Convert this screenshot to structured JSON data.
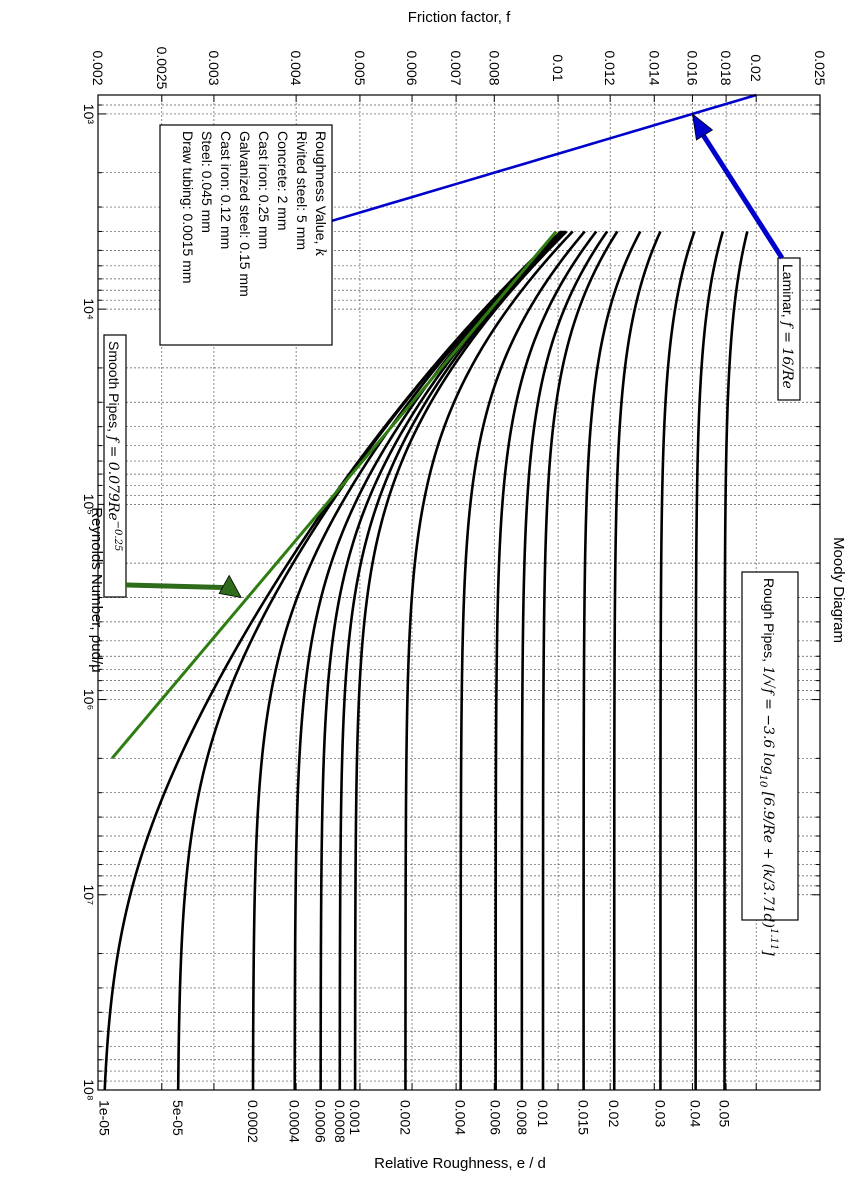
{
  "chart_data": {
    "type": "line",
    "title": "Moody Diagram",
    "xlabel": "Reynolds Number, ρud/μ",
    "ylabel": "Friction factor, f",
    "right_axis_label": "Relative Roughness, e / d",
    "x_scale": "log",
    "y_scale": "log",
    "xlim": [
      800,
      100000000
    ],
    "ylim": [
      0.002,
      0.025
    ],
    "grid": true,
    "x_ticks": [
      {
        "value": 1000,
        "label": "10³"
      },
      {
        "value": 10000,
        "label": "10⁴"
      },
      {
        "value": 100000,
        "label": "10⁵"
      },
      {
        "value": 1000000,
        "label": "10⁶"
      },
      {
        "value": 10000000,
        "label": "10⁷"
      },
      {
        "value": 100000000,
        "label": "10⁸"
      }
    ],
    "y_ticks": [
      {
        "value": 0.002,
        "label": "0.002"
      },
      {
        "value": 0.0025,
        "label": "0.0025"
      },
      {
        "value": 0.003,
        "label": "0.003"
      },
      {
        "value": 0.004,
        "label": "0.004"
      },
      {
        "value": 0.005,
        "label": "0.005"
      },
      {
        "value": 0.006,
        "label": "0.006"
      },
      {
        "value": 0.007,
        "label": "0.007"
      },
      {
        "value": 0.008,
        "label": "0.008"
      },
      {
        "value": 0.01,
        "label": "0.01"
      },
      {
        "value": 0.012,
        "label": "0.012"
      },
      {
        "value": 0.014,
        "label": "0.014"
      },
      {
        "value": 0.016,
        "label": "0.016"
      },
      {
        "value": 0.018,
        "label": "0.018"
      },
      {
        "value": 0.02,
        "label": "0.02"
      },
      {
        "value": 0.025,
        "label": "0.025"
      }
    ],
    "roughness_curves": {
      "color": "#000000",
      "re_start": 4000,
      "re_end": 100000000,
      "values": [
        0.05,
        0.04,
        0.03,
        0.02,
        0.015,
        0.01,
        0.008,
        0.006,
        0.004,
        0.002,
        0.001,
        0.0008,
        0.0006,
        0.0004,
        0.0002,
        5e-05,
        1e-05
      ],
      "labels": [
        "0.05",
        "0.04",
        "0.03",
        "0.02",
        "0.015",
        "0.01",
        "0.008",
        "0.006",
        "0.004",
        "0.002",
        "0.001",
        "0.0008",
        "0.0006",
        "0.0004",
        "0.0002",
        "5e-05",
        "1e-05"
      ]
    },
    "laminar": {
      "color": "#0000cc",
      "coefficient": 16,
      "re_range": [
        800,
        4000
      ]
    },
    "smooth": {
      "color": "#2e7d12",
      "coefficient": 0.079,
      "exponent": -0.25,
      "re_range": [
        4000,
        2000000
      ]
    },
    "annotations": {
      "laminar": {
        "text": "Laminar, ",
        "formula": "f = 16/Re",
        "arrow_color": "#0000cc",
        "point": [
          1000,
          0.016
        ]
      },
      "smooth": {
        "text": "Smooth Pipes, ",
        "formula": "f = 0.079Re",
        "exponent": "−0.25",
        "arrow_color": "#2e6b1a",
        "point": [
          300000,
          0.0033
        ]
      },
      "rough": {
        "text": "Rough Pipes, ",
        "formula_a": "1/√f = −3.6 log",
        "formula_b": "10",
        "formula_c": "[6.9/Re + (k/3.71d)",
        "formula_d": "1.11",
        "formula_e": "]"
      }
    },
    "roughness_table": {
      "title": "Roughness Value, ",
      "title_math": "k",
      "rows": [
        "Rivited steel: 5 mm",
        "Concrete: 2 mm",
        "Cast iron: 0.25 mm",
        "Galvanized steel: 0.15 mm",
        "Cast iron: 0.12 mm",
        "Steel: 0.045 mm",
        "Draw tubing: 0.0015 mm"
      ]
    }
  }
}
